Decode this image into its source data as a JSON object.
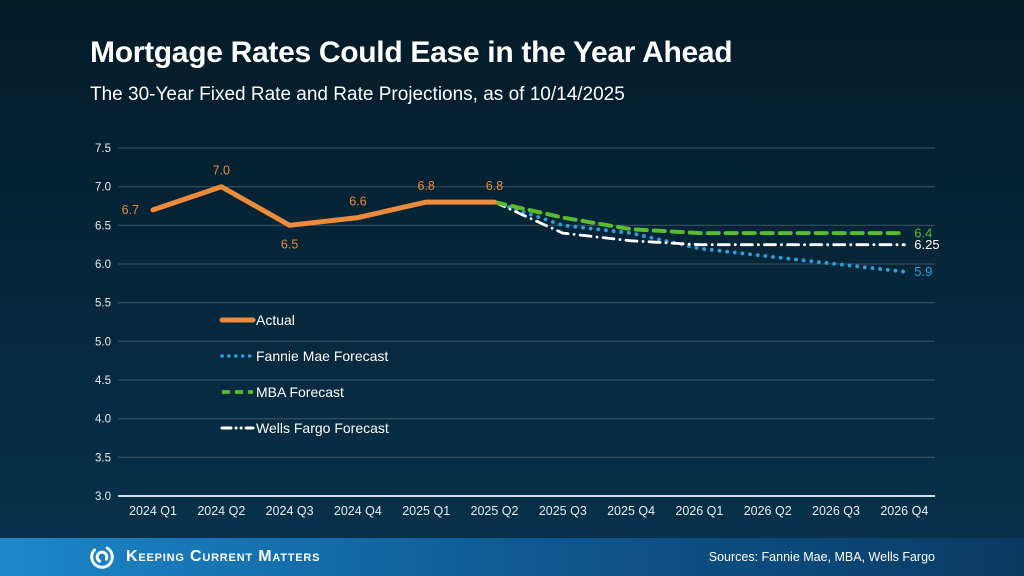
{
  "header": {
    "title": "Mortgage Rates Could Ease in the Year Ahead",
    "subtitle": "The 30-Year Fixed Rate and Rate Projections, as of 10/14/2025"
  },
  "chart_data": {
    "type": "line",
    "categories": [
      "2024 Q1",
      "2024 Q2",
      "2024 Q3",
      "2024 Q4",
      "2025 Q1",
      "2025 Q2",
      "2025 Q3",
      "2025 Q4",
      "2026 Q1",
      "2026 Q2",
      "2026 Q3",
      "2026 Q4"
    ],
    "ylim": [
      3.0,
      7.5
    ],
    "ytick_step": 0.5,
    "grid": true,
    "legend_position": "inside-middle-left",
    "series": [
      {
        "name": "Actual",
        "color": "#ED8B3C",
        "style": "solid",
        "start_index": 0,
        "values": [
          6.7,
          7.0,
          6.5,
          6.6,
          6.8,
          6.8
        ],
        "point_labels": [
          "6.7",
          "7.0",
          "6.5",
          "6.6",
          "6.8",
          "6.8"
        ],
        "label_pos": [
          "left",
          "above",
          "below",
          "above",
          "above",
          "above"
        ]
      },
      {
        "name": "Fannie Mae Forecast",
        "color": "#2E9FD6",
        "style": "dotted",
        "start_index": 5,
        "values": [
          6.8,
          6.5,
          6.4,
          6.2,
          6.1,
          6.0,
          5.9
        ],
        "end_label": "5.9"
      },
      {
        "name": "MBA Forecast",
        "color": "#5ABB2D",
        "style": "dashed",
        "start_index": 5,
        "values": [
          6.8,
          6.6,
          6.45,
          6.4,
          6.4,
          6.4,
          6.4
        ],
        "end_label": "6.4"
      },
      {
        "name": "Wells Fargo Forecast",
        "color": "#FFFFFF",
        "style": "dashdot",
        "start_index": 5,
        "values": [
          6.8,
          6.4,
          6.3,
          6.25,
          6.25,
          6.25,
          6.25
        ],
        "end_label": "6.25"
      }
    ]
  },
  "footer": {
    "brand": "Keeping Current Matters",
    "sources": "Sources: Fannie Mae, MBA, Wells Fargo",
    "bar_color_left": "#1C88CA",
    "bar_color_mid": "#0F5A94",
    "bar_color_right": "#093A63"
  },
  "colors": {
    "background_top": "#041B28",
    "background_bottom": "#07324D",
    "gridline": "#6E7D87",
    "axis_line": "#D5DDE2",
    "tick_label": "#E8EEF2",
    "title_text": "#FFFFFF"
  }
}
